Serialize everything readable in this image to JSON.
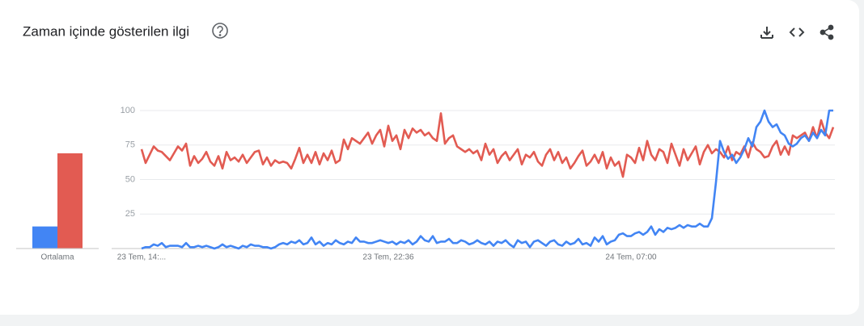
{
  "header": {
    "title": "Zaman içinde gösterilen ilgi"
  },
  "chart_data": [
    {
      "type": "bar",
      "categories": [
        "Ortalama"
      ],
      "series": [
        {
          "color": "#4285f4",
          "values": [
            16
          ]
        },
        {
          "color": "#e25b52",
          "values": [
            69
          ]
        }
      ],
      "ylim": [
        0,
        100
      ]
    },
    {
      "type": "line",
      "categories": [
        "23 Tem, 14:...",
        null,
        null,
        null,
        null,
        null,
        null,
        null,
        null,
        null,
        null,
        null,
        null,
        null,
        null,
        null,
        null,
        null,
        null,
        null,
        null,
        null,
        null,
        null,
        null,
        null,
        null,
        null,
        null,
        null,
        null,
        null,
        null,
        null,
        null,
        null,
        null,
        null,
        null,
        null,
        null,
        null,
        null,
        null,
        null,
        null,
        null,
        null,
        null,
        null,
        null,
        null,
        null,
        null,
        null,
        null,
        null,
        null,
        null,
        null,
        null,
        "23 Tem, 22:36",
        null,
        null,
        null,
        null,
        null,
        null,
        null,
        null,
        null,
        null,
        null,
        null,
        null,
        null,
        null,
        null,
        null,
        null,
        null,
        null,
        null,
        null,
        null,
        null,
        null,
        null,
        null,
        null,
        null,
        null,
        null,
        null,
        null,
        null,
        null,
        null,
        null,
        null,
        null,
        null,
        null,
        null,
        null,
        null,
        null,
        null,
        null,
        null,
        null,
        null,
        null,
        null,
        null,
        null,
        null,
        null,
        null,
        null,
        null,
        "24 Tem, 07:00",
        null,
        null,
        null,
        null,
        null,
        null,
        null,
        null,
        null,
        null,
        null,
        null,
        null,
        null,
        null,
        null,
        null,
        null,
        null,
        null,
        null,
        null,
        null,
        null,
        null,
        null,
        null,
        null,
        null,
        null,
        null,
        null,
        null,
        null,
        null,
        null,
        null,
        null,
        null,
        null,
        null,
        null,
        null,
        null,
        null,
        null,
        null,
        null,
        null,
        null
      ],
      "series": [
        {
          "color": "#4285f4",
          "values": [
            0,
            1,
            1,
            3,
            2,
            4,
            1,
            2,
            2,
            2,
            1,
            4,
            1,
            1,
            2,
            1,
            2,
            1,
            0,
            1,
            3,
            1,
            2,
            1,
            0,
            2,
            1,
            3,
            2,
            2,
            1,
            1,
            0,
            1,
            3,
            4,
            3,
            5,
            4,
            6,
            3,
            4,
            8,
            3,
            5,
            2,
            4,
            3,
            6,
            4,
            3,
            5,
            4,
            8,
            5,
            5,
            4,
            4,
            5,
            6,
            5,
            4,
            5,
            3,
            5,
            4,
            6,
            3,
            5,
            9,
            6,
            5,
            9,
            4,
            5,
            5,
            7,
            4,
            4,
            6,
            5,
            3,
            4,
            6,
            4,
            3,
            5,
            2,
            5,
            4,
            6,
            3,
            1,
            6,
            4,
            5,
            1,
            5,
            6,
            4,
            2,
            5,
            6,
            3,
            2,
            5,
            3,
            4,
            7,
            3,
            4,
            2,
            8,
            5,
            9,
            3,
            5,
            6,
            10,
            11,
            9,
            9,
            11,
            12,
            10,
            12,
            16,
            10,
            14,
            12,
            15,
            14,
            15,
            17,
            15,
            17,
            16,
            16,
            18,
            16,
            16,
            22,
            48,
            78,
            70,
            65,
            68,
            62,
            66,
            72,
            80,
            74,
            88,
            92,
            100,
            92,
            88,
            90,
            84,
            82,
            76,
            74,
            76,
            80,
            82,
            78,
            84,
            80,
            86,
            82,
            100,
            100
          ]
        },
        {
          "color": "#e25b52",
          "values": [
            72,
            62,
            68,
            74,
            71,
            70,
            67,
            64,
            69,
            74,
            71,
            76,
            60,
            67,
            62,
            65,
            70,
            63,
            60,
            67,
            58,
            70,
            64,
            66,
            63,
            68,
            62,
            66,
            70,
            71,
            61,
            66,
            60,
            64,
            62,
            63,
            62,
            58,
            65,
            73,
            62,
            68,
            62,
            70,
            61,
            69,
            64,
            71,
            62,
            64,
            79,
            72,
            80,
            78,
            76,
            80,
            84,
            76,
            82,
            86,
            74,
            89,
            78,
            82,
            72,
            86,
            80,
            87,
            84,
            86,
            82,
            84,
            80,
            78,
            98,
            76,
            80,
            82,
            74,
            72,
            70,
            72,
            69,
            71,
            64,
            76,
            68,
            72,
            62,
            67,
            70,
            64,
            68,
            72,
            61,
            68,
            66,
            70,
            63,
            60,
            68,
            72,
            64,
            70,
            62,
            66,
            58,
            62,
            67,
            71,
            60,
            63,
            68,
            62,
            70,
            58,
            66,
            60,
            63,
            52,
            68,
            66,
            62,
            73,
            64,
            78,
            68,
            64,
            72,
            70,
            62,
            76,
            68,
            60,
            72,
            64,
            69,
            74,
            61,
            70,
            75,
            69,
            72,
            70,
            66,
            74,
            64,
            70,
            68,
            74,
            66,
            77,
            72,
            70,
            66,
            67,
            74,
            78,
            68,
            74,
            68,
            82,
            80,
            82,
            84,
            78,
            88,
            80,
            93,
            84,
            80,
            88
          ]
        }
      ],
      "ylim": [
        0,
        100
      ],
      "yticks": [
        25,
        50,
        75,
        100
      ],
      "grid": true
    }
  ]
}
